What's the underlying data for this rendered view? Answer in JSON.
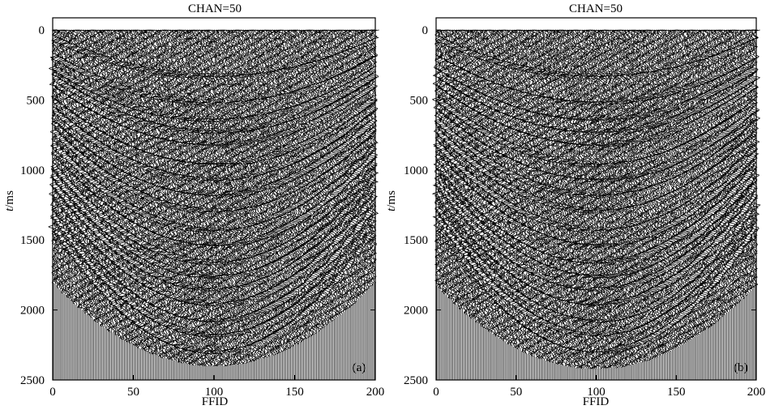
{
  "chart_data": [
    {
      "type": "seismic-wiggle",
      "panel_label": "(a)",
      "title": "CHAN=50",
      "xlabel": "FFID",
      "ylabel_italic": "t",
      "ylabel_unit": "/ms",
      "xlim": [
        0,
        200
      ],
      "ylim": [
        0,
        2500
      ],
      "y_inverted": true,
      "xticks": [
        "0",
        "50",
        "100",
        "150",
        "200"
      ],
      "yticks": [
        "0",
        "500",
        "1000",
        "1500",
        "2000",
        "2500"
      ],
      "n_traces": 200,
      "reflection_apex_ms": [
        330,
        520,
        640,
        730,
        820,
        960,
        1070,
        1180,
        1290,
        1430,
        1540,
        1660,
        1760,
        1850,
        1960,
        2080,
        2180,
        2300
      ],
      "reflection_moveout_ms_at_edge": 480,
      "direct_arrival_ms": 0,
      "data_end_apex_ms": 2400
    },
    {
      "type": "seismic-wiggle",
      "panel_label": "(b)",
      "title": "CHAN=50",
      "xlabel": "FFID",
      "ylabel_italic": "t",
      "ylabel_unit": "/ms",
      "xlim": [
        0,
        200
      ],
      "ylim": [
        0,
        2500
      ],
      "y_inverted": true,
      "xticks": [
        "0",
        "50",
        "100",
        "150",
        "200"
      ],
      "yticks": [
        "0",
        "500",
        "1000",
        "1500",
        "2000",
        "2500"
      ],
      "n_traces": 200,
      "reflection_apex_ms": [
        330,
        520,
        640,
        730,
        820,
        960,
        1070,
        1180,
        1290,
        1430,
        1540,
        1660,
        1760,
        1850,
        1960,
        2080,
        2180,
        2300
      ],
      "reflection_moveout_ms_at_edge": 480,
      "direct_arrival_ms": 0,
      "data_end_apex_ms": 2420
    }
  ]
}
